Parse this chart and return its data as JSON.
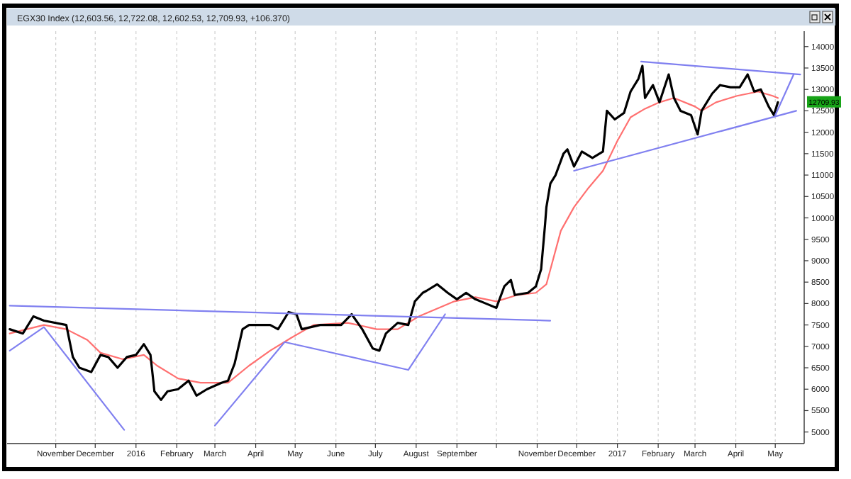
{
  "chart_data": {
    "type": "line",
    "title": "EGX30 Index (12,603.56, 12,722.08, 12,602.53, 12,709.93, +106.370)",
    "xlim": [
      "2015-09-25",
      "2017-05-23"
    ],
    "ylim": [
      4730,
      14360
    ],
    "xticks": [
      {
        "value": "2015-11-01",
        "label": "November"
      },
      {
        "value": "2015-12-01",
        "label": "December"
      },
      {
        "value": "2016-01-01",
        "label": "2016"
      },
      {
        "value": "2016-02-01",
        "label": "February"
      },
      {
        "value": "2016-03-01",
        "label": "March"
      },
      {
        "value": "2016-04-01",
        "label": "April"
      },
      {
        "value": "2016-05-01",
        "label": "May"
      },
      {
        "value": "2016-06-01",
        "label": "June"
      },
      {
        "value": "2016-07-01",
        "label": "July"
      },
      {
        "value": "2016-08-01",
        "label": "August"
      },
      {
        "value": "2016-09-01",
        "label": "September"
      },
      {
        "value": "2016-10-01",
        "label": null
      },
      {
        "value": "2016-11-01",
        "label": "November"
      },
      {
        "value": "2016-12-01",
        "label": "December"
      },
      {
        "value": "2017-01-01",
        "label": "2017"
      },
      {
        "value": "2017-02-01",
        "label": "February"
      },
      {
        "value": "2017-03-01",
        "label": "March"
      },
      {
        "value": "2017-04-01",
        "label": "April"
      },
      {
        "value": "2017-05-01",
        "label": "May"
      }
    ],
    "yticks": [
      5000,
      5500,
      6000,
      6500,
      7000,
      7500,
      8000,
      8500,
      9000,
      9500,
      10000,
      10500,
      11000,
      11500,
      12000,
      12500,
      13000,
      13500,
      14000
    ],
    "grid": "x",
    "annotations": [
      {
        "text": "12709.93",
        "y": 12709.93
      }
    ],
    "series": [
      {
        "color": "#ff7070",
        "x": [
          "2015-09-27",
          "2015-10-23",
          "2015-11-09",
          "2015-11-25",
          "2015-12-05",
          "2015-12-22",
          "2016-01-07",
          "2016-01-17",
          "2016-02-02",
          "2016-02-19",
          "2016-03-11",
          "2016-03-27",
          "2016-04-12",
          "2016-04-28",
          "2016-05-15",
          "2016-06-10",
          "2016-07-02",
          "2016-07-18",
          "2016-08-03",
          "2016-08-30",
          "2016-09-15",
          "2016-10-01",
          "2016-10-17",
          "2016-10-31",
          "2016-11-08",
          "2016-11-19",
          "2016-11-29",
          "2016-12-10",
          "2016-12-21",
          "2017-01-01",
          "2017-01-11",
          "2017-01-22",
          "2017-02-02",
          "2017-02-13",
          "2017-03-01",
          "2017-03-06",
          "2017-03-17",
          "2017-04-02",
          "2017-04-18",
          "2017-04-29",
          "2017-05-03"
        ],
        "values": [
          7300,
          7500,
          7400,
          7150,
          6850,
          6700,
          6800,
          6550,
          6250,
          6150,
          6150,
          6550,
          6900,
          7200,
          7500,
          7550,
          7400,
          7400,
          7700,
          8050,
          8150,
          8050,
          8200,
          8250,
          8450,
          9700,
          10250,
          10700,
          11100,
          11800,
          12350,
          12550,
          12700,
          12800,
          12600,
          12500,
          12700,
          12850,
          12950,
          12850,
          12800
        ]
      },
      {
        "color": "#000000",
        "x": [
          "2015-09-27",
          "2015-10-07",
          "2015-10-15",
          "2015-10-23",
          "2015-11-09",
          "2015-11-14",
          "2015-11-19",
          "2015-11-28",
          "2015-12-05",
          "2015-12-11",
          "2015-12-18",
          "2015-12-25",
          "2016-01-01",
          "2016-01-07",
          "2016-01-12",
          "2016-01-15",
          "2016-01-20",
          "2016-01-25",
          "2016-02-02",
          "2016-02-10",
          "2016-02-16",
          "2016-02-24",
          "2016-03-06",
          "2016-03-11",
          "2016-03-16",
          "2016-03-22",
          "2016-03-27",
          "2016-04-12",
          "2016-04-18",
          "2016-04-26",
          "2016-05-02",
          "2016-05-06",
          "2016-05-20",
          "2016-06-05",
          "2016-06-13",
          "2016-06-21",
          "2016-06-29",
          "2016-07-04",
          "2016-07-09",
          "2016-07-18",
          "2016-07-26",
          "2016-07-31",
          "2016-08-06",
          "2016-08-09",
          "2016-08-17",
          "2016-08-25",
          "2016-09-01",
          "2016-09-08",
          "2016-09-15",
          "2016-09-23",
          "2016-10-01",
          "2016-10-07",
          "2016-10-12",
          "2016-10-15",
          "2016-10-25",
          "2016-10-31",
          "2016-11-04",
          "2016-11-07",
          "2016-11-08",
          "2016-11-11",
          "2016-11-15",
          "2016-11-21",
          "2016-11-24",
          "2016-11-29",
          "2016-12-05",
          "2016-12-13",
          "2016-12-21",
          "2016-12-24",
          "2016-12-30",
          "2017-01-06",
          "2017-01-11",
          "2017-01-17",
          "2017-01-20",
          "2017-01-22",
          "2017-01-28",
          "2017-02-02",
          "2017-02-09",
          "2017-02-13",
          "2017-02-18",
          "2017-02-26",
          "2017-03-03",
          "2017-03-06",
          "2017-03-14",
          "2017-03-20",
          "2017-03-28",
          "2017-04-04",
          "2017-04-10",
          "2017-04-15",
          "2017-04-20",
          "2017-04-26",
          "2017-04-30",
          "2017-05-03"
        ],
        "values": [
          7400,
          7300,
          7700,
          7600,
          7500,
          6750,
          6500,
          6400,
          6800,
          6750,
          6500,
          6750,
          6800,
          7050,
          6800,
          5950,
          5750,
          5950,
          6000,
          6200,
          5850,
          6000,
          6150,
          6200,
          6600,
          7400,
          7500,
          7500,
          7400,
          7800,
          7750,
          7400,
          7500,
          7500,
          7750,
          7400,
          6950,
          6900,
          7300,
          7550,
          7500,
          8050,
          8250,
          8300,
          8450,
          8250,
          8100,
          8250,
          8100,
          8000,
          7900,
          8400,
          8550,
          8200,
          8250,
          8400,
          8800,
          9850,
          10250,
          10800,
          11000,
          11500,
          11600,
          11200,
          11550,
          11400,
          11550,
          12500,
          12300,
          12450,
          12950,
          13250,
          13550,
          12800,
          13100,
          12700,
          13350,
          12800,
          12500,
          12400,
          11950,
          12500,
          12900,
          13100,
          13050,
          13050,
          13350,
          12950,
          13000,
          12600,
          12400,
          12700
        ]
      },
      {
        "color": "#8080f0",
        "x": [
          "2015-09-27",
          "2016-11-11"
        ],
        "values": [
          7950,
          7600
        ]
      },
      {
        "color": "#8080f0",
        "x": [
          "2015-09-27",
          "2015-10-23",
          "2015-12-23"
        ],
        "values": [
          6900,
          7450,
          5050
        ]
      },
      {
        "color": "#8080f0",
        "x": [
          "2016-03-01",
          "2016-04-23",
          "2016-07-26",
          "2016-08-23"
        ],
        "values": [
          5150,
          7100,
          6450,
          7750
        ]
      },
      {
        "color": "#8080f0",
        "x": [
          "2016-11-29",
          "2017-05-17"
        ],
        "values": [
          11100,
          12500
        ]
      },
      {
        "color": "#8080f0",
        "x": [
          "2017-01-19",
          "2017-05-20"
        ],
        "values": [
          13650,
          13350
        ]
      },
      {
        "color": "#8080f0",
        "x": [
          "2017-05-01",
          "2017-05-15"
        ],
        "values": [
          12400,
          13350
        ]
      }
    ]
  }
}
